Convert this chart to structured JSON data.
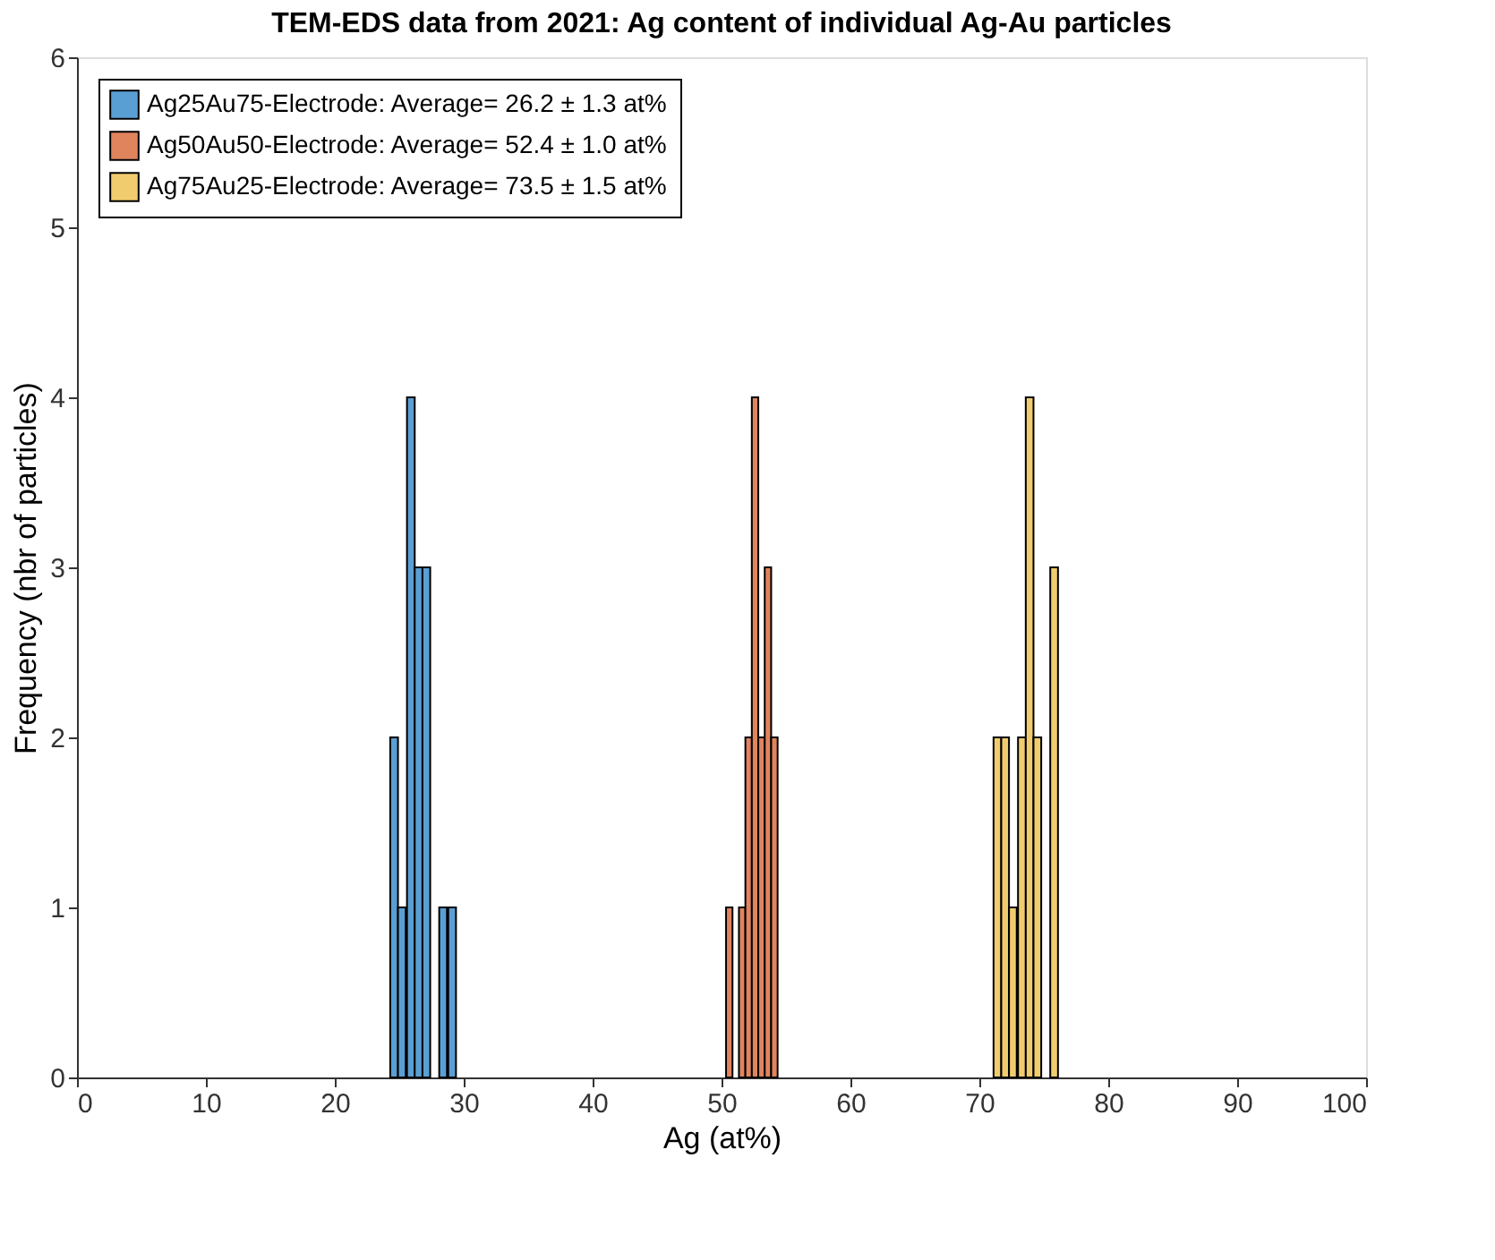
{
  "chart_data": {
    "type": "bar",
    "title": "TEM-EDS data from 2021: Ag content of individual Ag-Au particles",
    "xlabel": "Ag (at%)",
    "ylabel": "Frequency (nbr of particles)",
    "series": [
      {
        "name": "Ag25Au75-Electrode: Average= 26.2 ± 1.3 at%",
        "color": "#5a9fd4",
        "x": [
          24.6,
          25.2,
          25.9,
          26.5,
          27.1,
          28.4,
          29.1
        ],
        "values": [
          2,
          1,
          4,
          3,
          3,
          1,
          1
        ]
      },
      {
        "name": "Ag50Au50-Electrode: Average= 52.4 ± 1.0 at%",
        "color": "#e0845e",
        "x": [
          50.6,
          51.6,
          52.1,
          52.6,
          53.1,
          53.6,
          54.1
        ],
        "values": [
          1,
          1,
          2,
          4,
          2,
          3,
          2
        ]
      },
      {
        "name": "Ag75Au25-Electrode: Average= 73.5 ± 1.5 at%",
        "color": "#f0cc6e",
        "x": [
          71.4,
          72.0,
          72.6,
          73.3,
          73.9,
          74.5,
          75.8
        ],
        "values": [
          2,
          2,
          1,
          2,
          4,
          2,
          3
        ]
      }
    ],
    "xlim": [
      0,
      100
    ],
    "xticks": [
      0,
      10,
      20,
      30,
      40,
      50,
      60,
      70,
      80,
      90,
      100
    ],
    "ylim": [
      0,
      6
    ],
    "yticks": [
      0,
      1,
      2,
      3,
      4,
      5,
      6
    ],
    "grid": false,
    "legend": "top left"
  }
}
